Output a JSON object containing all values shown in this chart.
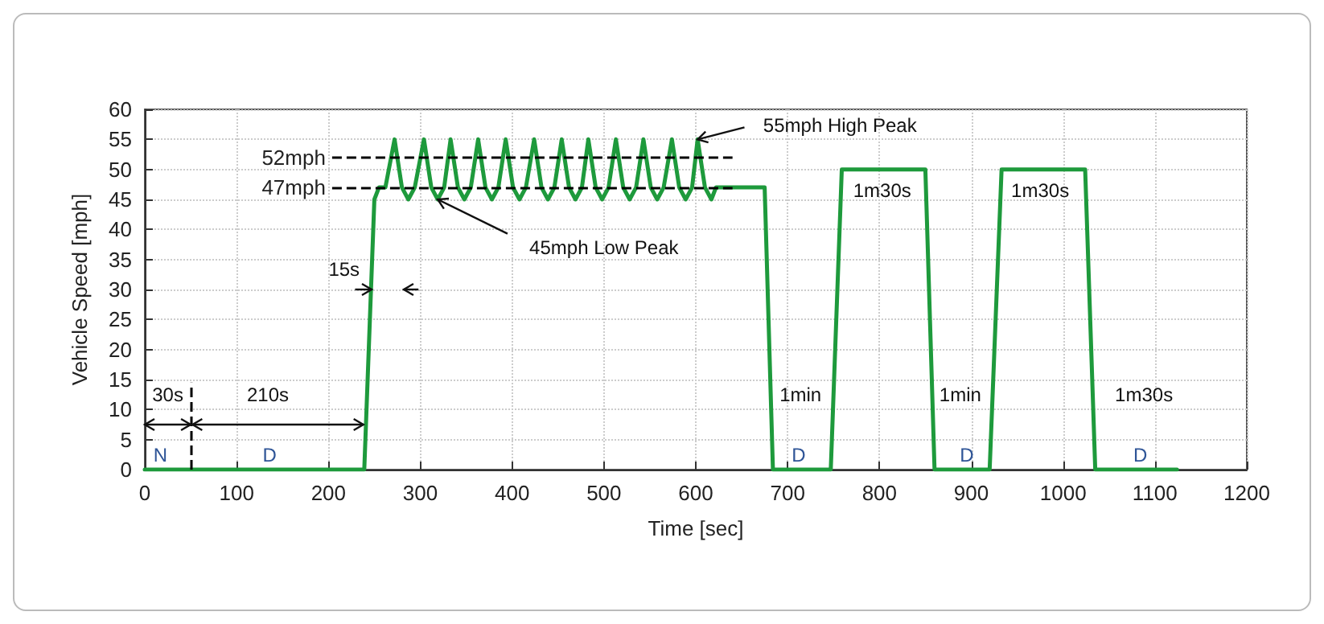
{
  "chart_data": {
    "type": "line",
    "xlabel": "Time [sec]",
    "ylabel": "Vehicle Speed [mph]",
    "x": [
      0,
      239,
      250,
      255,
      262,
      272,
      280,
      287,
      294,
      304,
      312,
      319,
      326,
      333,
      341,
      348,
      355,
      363,
      371,
      378,
      385,
      393,
      401,
      408,
      415,
      424,
      432,
      439,
      446,
      454,
      462,
      469,
      476,
      483,
      491,
      498,
      505,
      513,
      521,
      528,
      535,
      543,
      551,
      558,
      565,
      574,
      582,
      589,
      596,
      602,
      610,
      617,
      622,
      675,
      684,
      747,
      759,
      850,
      860,
      920,
      933,
      1024,
      1035,
      1124
    ],
    "series": [
      {
        "color": "#1e9a3c",
        "values": [
          0,
          0,
          45,
          47,
          47,
          55,
          47,
          45,
          47,
          55,
          47,
          45,
          47,
          55,
          47,
          45,
          47,
          55,
          47,
          45,
          47,
          55,
          47,
          45,
          47,
          55,
          47,
          45,
          47,
          55,
          47,
          45,
          47,
          55,
          47,
          45,
          47,
          55,
          47,
          45,
          47,
          55,
          47,
          45,
          47,
          55,
          47,
          45,
          47,
          55,
          47,
          45,
          47,
          47,
          0,
          0,
          50,
          50,
          0,
          0,
          50,
          50,
          0,
          0
        ]
      }
    ],
    "xlim": [
      0,
      1200
    ],
    "xticks": [
      0,
      100,
      200,
      300,
      400,
      500,
      600,
      700,
      800,
      900,
      1000,
      1100,
      1200
    ],
    "ylim": [
      0,
      60
    ],
    "yticks": [
      0,
      5,
      10,
      15,
      20,
      25,
      30,
      35,
      40,
      45,
      50,
      55,
      60
    ],
    "grid": true,
    "marker": "none",
    "line_style": "solid",
    "ref_lines": [
      {
        "axis": "y",
        "value": 52,
        "label": "52mph",
        "color": "#000000",
        "line_style": "dashed"
      },
      {
        "axis": "y",
        "value": 47,
        "label": "47mph",
        "color": "#000000",
        "line_style": "dashed"
      },
      {
        "axis": "x",
        "value": 50,
        "label": null,
        "color": "#000000",
        "line_style": "dashed"
      }
    ],
    "annotations": [
      {
        "text": "55mph High Peak",
        "x": 602,
        "y": 55
      },
      {
        "text": "45mph Low Peak",
        "x": 319,
        "y": 45
      },
      {
        "text": "15s",
        "x": 247,
        "y": 30
      },
      {
        "text": "30s",
        "x": 50,
        "y": 7.5
      },
      "210s",
      "N",
      "D",
      "1min",
      "1m30s",
      "1min",
      "1m30s",
      "1m30s",
      "D",
      "D",
      "D"
    ]
  }
}
